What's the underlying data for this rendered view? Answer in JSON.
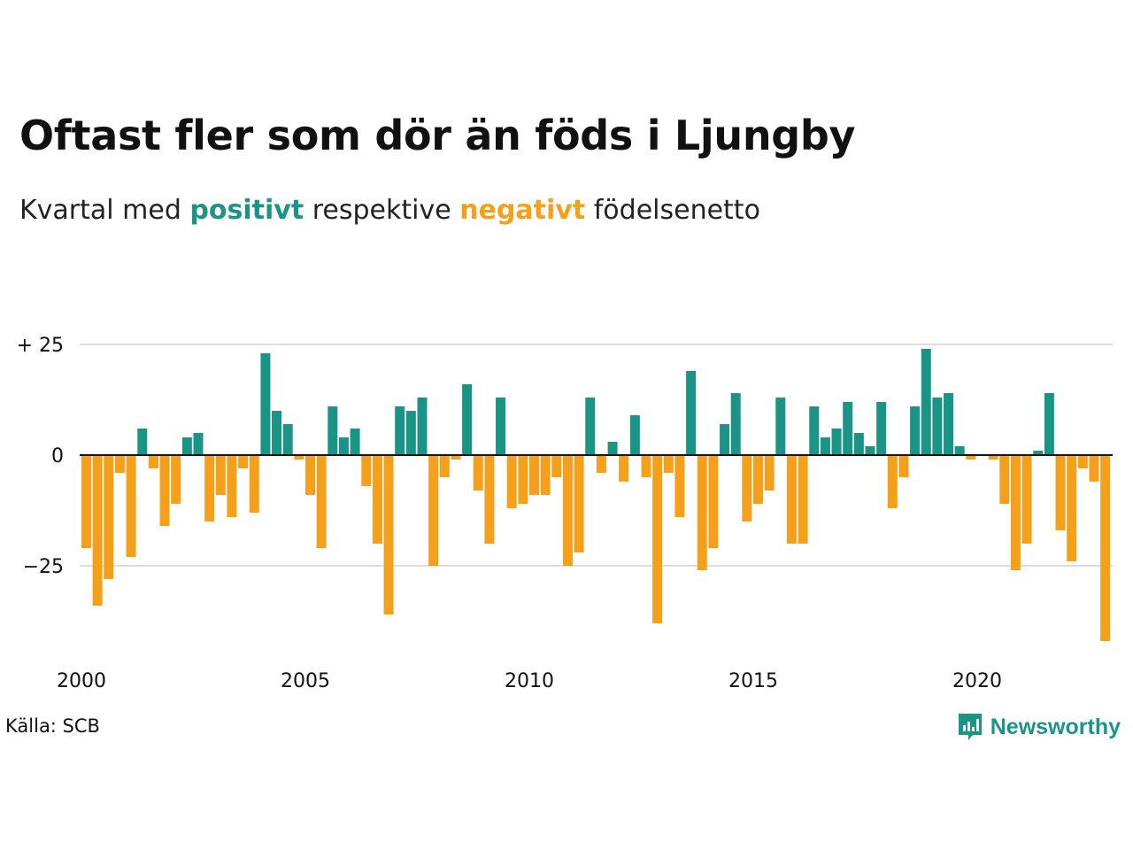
{
  "title": "Oftast fler som dör än föds i Ljungby",
  "subtitle": {
    "before": "Kvartal med",
    "positive": "positivt",
    "middle": "respektive",
    "negative": "negativt",
    "after": "födelsenetto"
  },
  "colors": {
    "positive": "#1a9585",
    "negative": "#f5a01a",
    "grid": "#dddddd",
    "baseline": "#111111"
  },
  "source": "Källa: SCB",
  "brand": {
    "name": "Newsworthy",
    "icon": "bar-chart-speech-bubble-icon"
  },
  "chart_data": {
    "type": "bar",
    "title": "Oftast fler som dör än föds i Ljungby",
    "subtitle": "Kvartal med positivt respektive negativt födelsenetto",
    "xlabel": "",
    "ylabel": "",
    "x_tick_labels": [
      "2000",
      "2005",
      "2010",
      "2015",
      "2020"
    ],
    "y_tick_labels": [
      {
        "value": 25,
        "label": "+ 25"
      },
      {
        "value": 0,
        "label": "0"
      },
      {
        "value": -25,
        "label": "−25"
      }
    ],
    "ylim": [
      -42,
      25
    ],
    "grid": true,
    "categories": [
      "2000Q1",
      "2000Q2",
      "2000Q3",
      "2000Q4",
      "2001Q1",
      "2001Q2",
      "2001Q3",
      "2001Q4",
      "2002Q1",
      "2002Q2",
      "2002Q3",
      "2002Q4",
      "2003Q1",
      "2003Q2",
      "2003Q3",
      "2003Q4",
      "2004Q1",
      "2004Q2",
      "2004Q3",
      "2004Q4",
      "2005Q1",
      "2005Q2",
      "2005Q3",
      "2005Q4",
      "2006Q1",
      "2006Q2",
      "2006Q3",
      "2006Q4",
      "2007Q1",
      "2007Q2",
      "2007Q3",
      "2007Q4",
      "2008Q1",
      "2008Q2",
      "2008Q3",
      "2008Q4",
      "2009Q1",
      "2009Q2",
      "2009Q3",
      "2009Q4",
      "2010Q1",
      "2010Q2",
      "2010Q3",
      "2010Q4",
      "2011Q1",
      "2011Q2",
      "2011Q3",
      "2011Q4",
      "2012Q1",
      "2012Q2",
      "2012Q3",
      "2012Q4",
      "2013Q1",
      "2013Q2",
      "2013Q3",
      "2013Q4",
      "2014Q1",
      "2014Q2",
      "2014Q3",
      "2014Q4",
      "2015Q1",
      "2015Q2",
      "2015Q3",
      "2015Q4",
      "2016Q1",
      "2016Q2",
      "2016Q3",
      "2016Q4",
      "2017Q1",
      "2017Q2",
      "2017Q3",
      "2017Q4",
      "2018Q1",
      "2018Q2",
      "2018Q3",
      "2018Q4",
      "2019Q1",
      "2019Q2",
      "2019Q3",
      "2019Q4",
      "2020Q1",
      "2020Q2",
      "2020Q3",
      "2020Q4",
      "2021Q1",
      "2021Q2",
      "2021Q3",
      "2021Q4",
      "2022Q1",
      "2022Q2",
      "2022Q3",
      "2022Q4",
      "2023Q1"
    ],
    "values": [
      -21,
      -34,
      -28,
      -4,
      -23,
      6,
      -3,
      -16,
      -11,
      4,
      5,
      -15,
      -9,
      -14,
      -3,
      -13,
      23,
      10,
      7,
      -1,
      -9,
      -21,
      11,
      4,
      6,
      -7,
      -20,
      -36,
      11,
      10,
      13,
      -25,
      -5,
      -1,
      16,
      -8,
      -20,
      13,
      -12,
      -11,
      -9,
      -9,
      -5,
      -25,
      -22,
      13,
      -4,
      3,
      -6,
      9,
      -5,
      -38,
      -4,
      -14,
      19,
      -26,
      -21,
      7,
      14,
      -15,
      -11,
      -8,
      13,
      -20,
      -20,
      11,
      4,
      6,
      12,
      5,
      2,
      12,
      -12,
      -5,
      11,
      24,
      13,
      14,
      2,
      -1,
      0,
      -1,
      -11,
      -26,
      -20,
      1,
      14,
      -17,
      -24,
      -3,
      -6,
      -42,
      0
    ]
  }
}
